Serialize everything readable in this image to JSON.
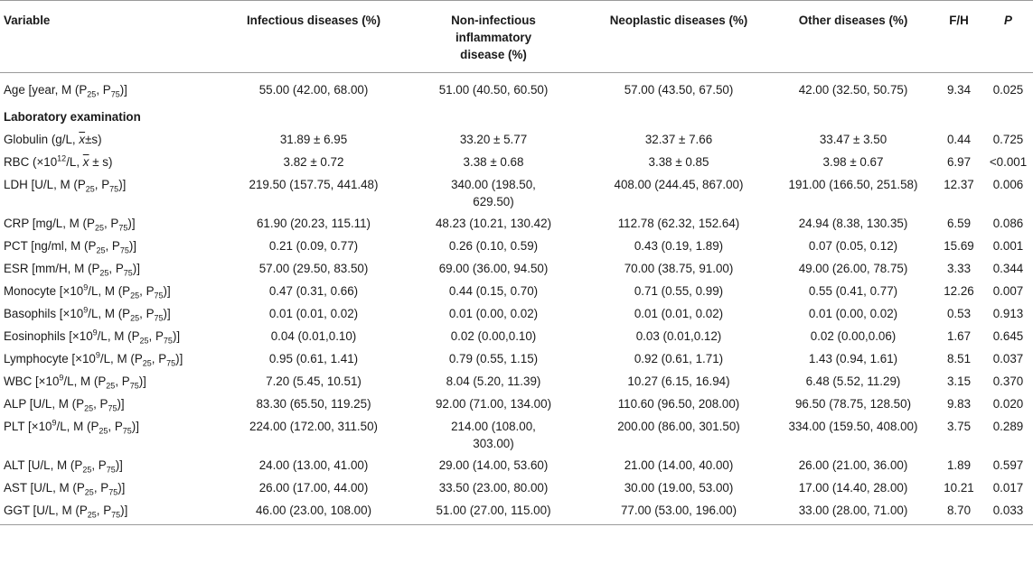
{
  "header": {
    "variable": "Variable",
    "infectious": "Infectious diseases (%)",
    "noninfectious_l1": "Non-infectious",
    "noninfectious_l2": "inflammatory",
    "noninfectious_l3": "disease (%)",
    "neoplastic": "Neoplastic diseases (%)",
    "other": "Other diseases (%)",
    "fh": "F/H",
    "p": "P"
  },
  "rows": {
    "age": {
      "c1": "55.00 (42.00, 68.00)",
      "c2": "51.00 (40.50, 60.50)",
      "c3": "57.00 (43.50, 67.50)",
      "c4": "42.00 (32.50, 50.75)",
      "fh": "9.34",
      "p": "0.025"
    },
    "section": "Laboratory examination",
    "globulin": {
      "c1": "31.89 ± 6.95",
      "c2": "33.20 ± 5.77",
      "c3": "32.37 ± 7.66",
      "c4": "33.47 ± 3.50",
      "fh": "0.44",
      "p": "0.725"
    },
    "rbc": {
      "c1": "3.82 ± 0.72",
      "c2": "3.38 ± 0.68",
      "c3": "3.38 ± 0.85",
      "c4": "3.98 ± 0.67",
      "fh": "6.97",
      "p": "<0.001"
    },
    "ldh": {
      "c1": "219.50 (157.75, 441.48)",
      "c2a": "340.00 (198.50,",
      "c2b": "629.50)",
      "c3": "408.00 (244.45, 867.00)",
      "c4": "191.00 (166.50, 251.58)",
      "fh": "12.37",
      "p": "0.006"
    },
    "crp": {
      "c1": "61.90 (20.23, 115.11)",
      "c2": "48.23 (10.21, 130.42)",
      "c3": "112.78 (62.32, 152.64)",
      "c4": "24.94 (8.38, 130.35)",
      "fh": "6.59",
      "p": "0.086"
    },
    "pct": {
      "c1": "0.21 (0.09, 0.77)",
      "c2": "0.26 (0.10, 0.59)",
      "c3": "0.43 (0.19, 1.89)",
      "c4": "0.07 (0.05, 0.12)",
      "fh": "15.69",
      "p": "0.001"
    },
    "esr": {
      "c1": "57.00 (29.50, 83.50)",
      "c2": "69.00 (36.00, 94.50)",
      "c3": "70.00 (38.75, 91.00)",
      "c4": "49.00 (26.00, 78.75)",
      "fh": "3.33",
      "p": "0.344"
    },
    "monocyte": {
      "c1": "0.47 (0.31, 0.66)",
      "c2": "0.44 (0.15, 0.70)",
      "c3": "0.71 (0.55, 0.99)",
      "c4": "0.55 (0.41, 0.77)",
      "fh": "12.26",
      "p": "0.007"
    },
    "basophils": {
      "c1": "0.01 (0.01, 0.02)",
      "c2": "0.01 (0.00, 0.02)",
      "c3": "0.01 (0.01, 0.02)",
      "c4": "0.01 (0.00, 0.02)",
      "fh": "0.53",
      "p": "0.913"
    },
    "eosinophils": {
      "c1": "0.04 (0.01,0.10)",
      "c2": "0.02 (0.00,0.10)",
      "c3": "0.03 (0.01,0.12)",
      "c4": "0.02 (0.00,0.06)",
      "fh": "1.67",
      "p": "0.645"
    },
    "lymphocyte": {
      "c1": "0.95 (0.61, 1.41)",
      "c2": "0.79 (0.55, 1.15)",
      "c3": "0.92 (0.61, 1.71)",
      "c4": "1.43 (0.94, 1.61)",
      "fh": "8.51",
      "p": "0.037"
    },
    "wbc": {
      "c1": "7.20 (5.45, 10.51)",
      "c2": "8.04 (5.20, 11.39)",
      "c3": "10.27 (6.15, 16.94)",
      "c4": "6.48 (5.52, 11.29)",
      "fh": "3.15",
      "p": "0.370"
    },
    "alp": {
      "c1": "83.30 (65.50, 119.25)",
      "c2": "92.00 (71.00, 134.00)",
      "c3": "110.60 (96.50, 208.00)",
      "c4": "96.50 (78.75, 128.50)",
      "fh": "9.83",
      "p": "0.020"
    },
    "plt": {
      "c1": "224.00 (172.00, 311.50)",
      "c2a": "214.00 (108.00,",
      "c2b": "303.00)",
      "c3": "200.00 (86.00, 301.50)",
      "c4": "334.00 (159.50, 408.00)",
      "fh": "3.75",
      "p": "0.289"
    },
    "alt": {
      "c1": "24.00 (13.00, 41.00)",
      "c2": "29.00 (14.00, 53.60)",
      "c3": "21.00 (14.00, 40.00)",
      "c4": "26.00 (21.00, 36.00)",
      "fh": "1.89",
      "p": "0.597"
    },
    "ast": {
      "c1": "26.00 (17.00, 44.00)",
      "c2": "33.50 (23.00, 80.00)",
      "c3": "30.00 (19.00, 53.00)",
      "c4": "17.00 (14.40, 28.00)",
      "fh": "10.21",
      "p": "0.017"
    },
    "ggt": {
      "c1": "46.00 (23.00, 108.00)",
      "c2": "51.00 (27.00, 115.00)",
      "c3": "77.00 (53.00, 196.00)",
      "c4": "33.00 (28.00, 71.00)",
      "fh": "8.70",
      "p": "0.033"
    }
  }
}
